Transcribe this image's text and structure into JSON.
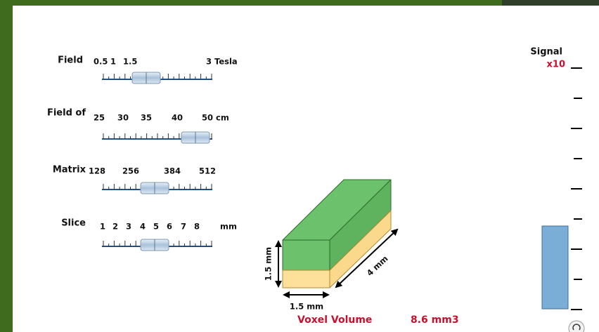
{
  "sliders": [
    {
      "label": "Field",
      "scale": [
        "0.5",
        "1",
        "1.5",
        "3 Tesla"
      ]
    },
    {
      "label": "Field of",
      "scale": [
        "25",
        "30",
        "35",
        "40",
        "50 cm"
      ]
    },
    {
      "label": "Matrix",
      "scale": [
        "128",
        "256",
        "384",
        "512"
      ]
    },
    {
      "label": "Slice",
      "scale": [
        "1",
        "2",
        "3",
        "4",
        "5",
        "6",
        "7",
        "8",
        "mm"
      ]
    }
  ],
  "signal": {
    "title": "Signal",
    "multiplier": "x10"
  },
  "voxel": {
    "height_label": "1.5 mm",
    "width_label": "1.5 mm",
    "depth_label": "4 mm",
    "volume_label": "Voxel Volume",
    "volume_value": "8.6 mm3"
  }
}
